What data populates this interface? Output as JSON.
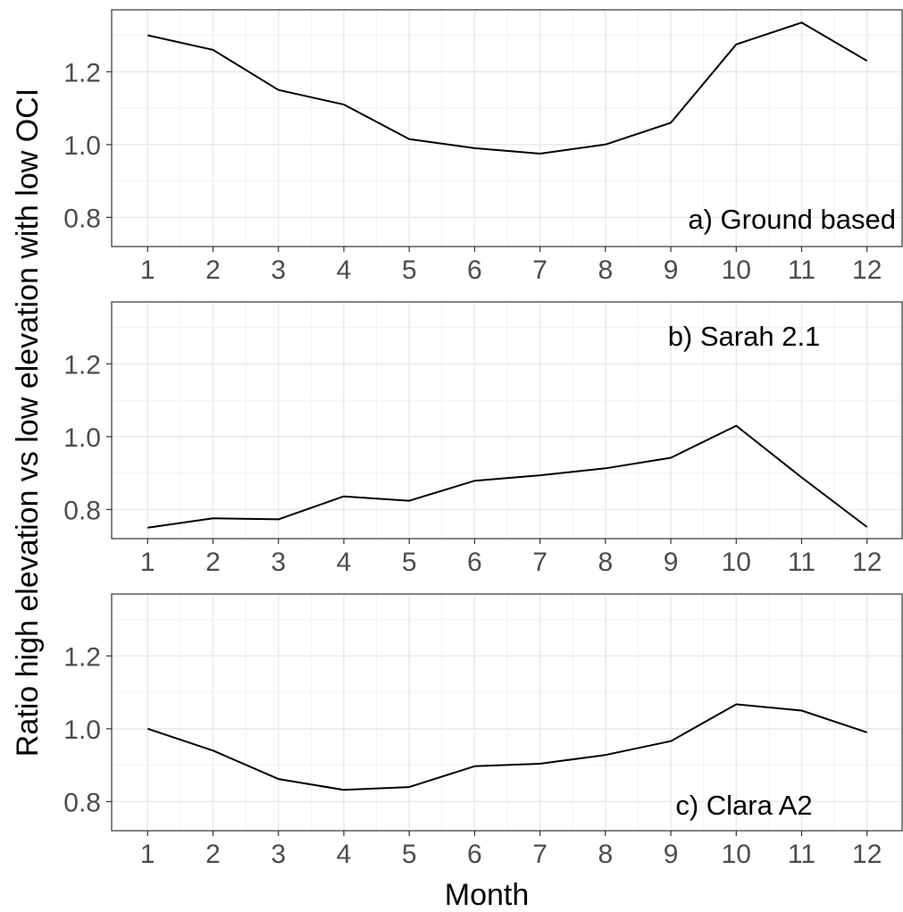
{
  "figure": {
    "xlabel": "Month",
    "ylabel": "Ratio high elevation vs low elevation with low OCI"
  },
  "chart_data": [
    {
      "type": "line",
      "panel_label": "a) Ground based",
      "label_position": "bottom-right",
      "x": [
        1,
        2,
        3,
        4,
        5,
        6,
        7,
        8,
        9,
        10,
        11,
        12
      ],
      "values": [
        1.3,
        1.26,
        1.15,
        1.11,
        1.015,
        0.99,
        0.975,
        1.0,
        1.06,
        1.275,
        1.335,
        1.23
      ],
      "ylim": [
        0.72,
        1.37
      ],
      "yticks": [
        0.8,
        1.0,
        1.2
      ],
      "ytick_labels": [
        "0.8",
        "1.0",
        "1.2"
      ],
      "xticks": [
        1,
        2,
        3,
        4,
        5,
        6,
        7,
        8,
        9,
        10,
        11,
        12
      ],
      "xtick_labels": [
        "1",
        "2",
        "3",
        "4",
        "5",
        "6",
        "7",
        "8",
        "9",
        "10",
        "11",
        "12"
      ],
      "grid": true,
      "line_color": "#000000"
    },
    {
      "type": "line",
      "panel_label": "b) Sarah 2.1",
      "label_position": "top-right",
      "x": [
        1,
        2,
        3,
        4,
        5,
        6,
        7,
        8,
        9,
        10,
        11,
        12
      ],
      "values": [
        0.75,
        0.776,
        0.773,
        0.836,
        0.824,
        0.879,
        0.894,
        0.913,
        0.942,
        1.03,
        0.888,
        0.752
      ],
      "ylim": [
        0.72,
        1.37
      ],
      "yticks": [
        0.8,
        1.0,
        1.2
      ],
      "ytick_labels": [
        "0.8",
        "1.0",
        "1.2"
      ],
      "xticks": [
        1,
        2,
        3,
        4,
        5,
        6,
        7,
        8,
        9,
        10,
        11,
        12
      ],
      "xtick_labels": [
        "1",
        "2",
        "3",
        "4",
        "5",
        "6",
        "7",
        "8",
        "9",
        "10",
        "11",
        "12"
      ],
      "grid": true,
      "line_color": "#000000"
    },
    {
      "type": "line",
      "panel_label": "c) Clara A2",
      "label_position": "bottom-right",
      "x": [
        1,
        2,
        3,
        4,
        5,
        6,
        7,
        8,
        9,
        10,
        11,
        12
      ],
      "values": [
        1.0,
        0.94,
        0.862,
        0.832,
        0.84,
        0.897,
        0.904,
        0.928,
        0.966,
        1.067,
        1.05,
        0.99
      ],
      "ylim": [
        0.72,
        1.37
      ],
      "yticks": [
        0.8,
        1.0,
        1.2
      ],
      "ytick_labels": [
        "0.8",
        "1.0",
        "1.2"
      ],
      "xticks": [
        1,
        2,
        3,
        4,
        5,
        6,
        7,
        8,
        9,
        10,
        11,
        12
      ],
      "xtick_labels": [
        "1",
        "2",
        "3",
        "4",
        "5",
        "6",
        "7",
        "8",
        "9",
        "10",
        "11",
        "12"
      ],
      "grid": true,
      "line_color": "#000000"
    }
  ]
}
